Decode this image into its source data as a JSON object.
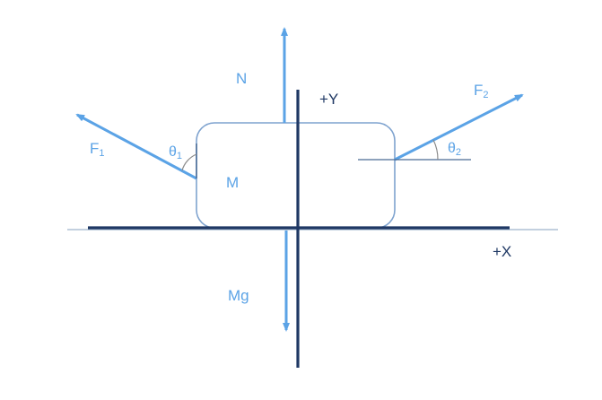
{
  "diagram": {
    "labels": {
      "normal_force": "N",
      "weight": "Mg",
      "mass": "M",
      "force_1": "F",
      "force_1_sub": "1",
      "force_2": "F",
      "force_2_sub": "2",
      "theta_1": "θ",
      "theta_1_sub": "1",
      "theta_2": "θ",
      "theta_2_sub": "2",
      "y_axis": "+Y",
      "x_axis": "+X"
    },
    "colors": {
      "force": "#5ba3e6",
      "axis": "#1f3864",
      "block": "#7fa3cf",
      "ground": "#9fb3cc",
      "ref_line": "#4a6a94",
      "angle_arc": "#8a8a8a"
    }
  }
}
